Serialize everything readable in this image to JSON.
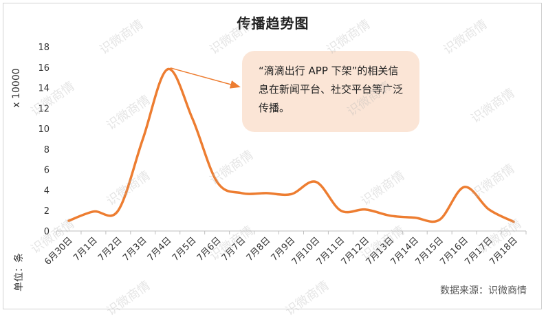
{
  "chart_data": {
    "type": "line",
    "title": "传播趋势图",
    "ylabel": "x 10000",
    "unit_label": "单位：条",
    "source": "数据来源：识微商情",
    "categories": [
      "6月30日",
      "7月1日",
      "7月2日",
      "7月3日",
      "7月4日",
      "7月5日",
      "7月6日",
      "7月7日",
      "7月8日",
      "7月9日",
      "7月10日",
      "7月11日",
      "7月12日",
      "7月13日",
      "7月14日",
      "7月15日",
      "7月16日",
      "7月17日",
      "7月18日"
    ],
    "values": [
      1.0,
      1.9,
      2.0,
      9.0,
      15.8,
      11.0,
      4.8,
      3.7,
      3.7,
      3.6,
      4.8,
      2.0,
      2.1,
      1.5,
      1.3,
      1.1,
      4.3,
      2.1,
      0.9
    ],
    "ylim": [
      0,
      18
    ],
    "yticks": [
      "0",
      "2",
      "4",
      "6",
      "8",
      "10",
      "12",
      "14",
      "16",
      "18"
    ],
    "grid": false,
    "line_color": "#ed7d31"
  },
  "annotation": {
    "text": "“滴滴出行 APP 下架”的相关信息在新闻平台、社交平台等广泛传播。",
    "target_index": 4,
    "box_color": "#fbe5d6"
  },
  "watermark": "识微商情"
}
